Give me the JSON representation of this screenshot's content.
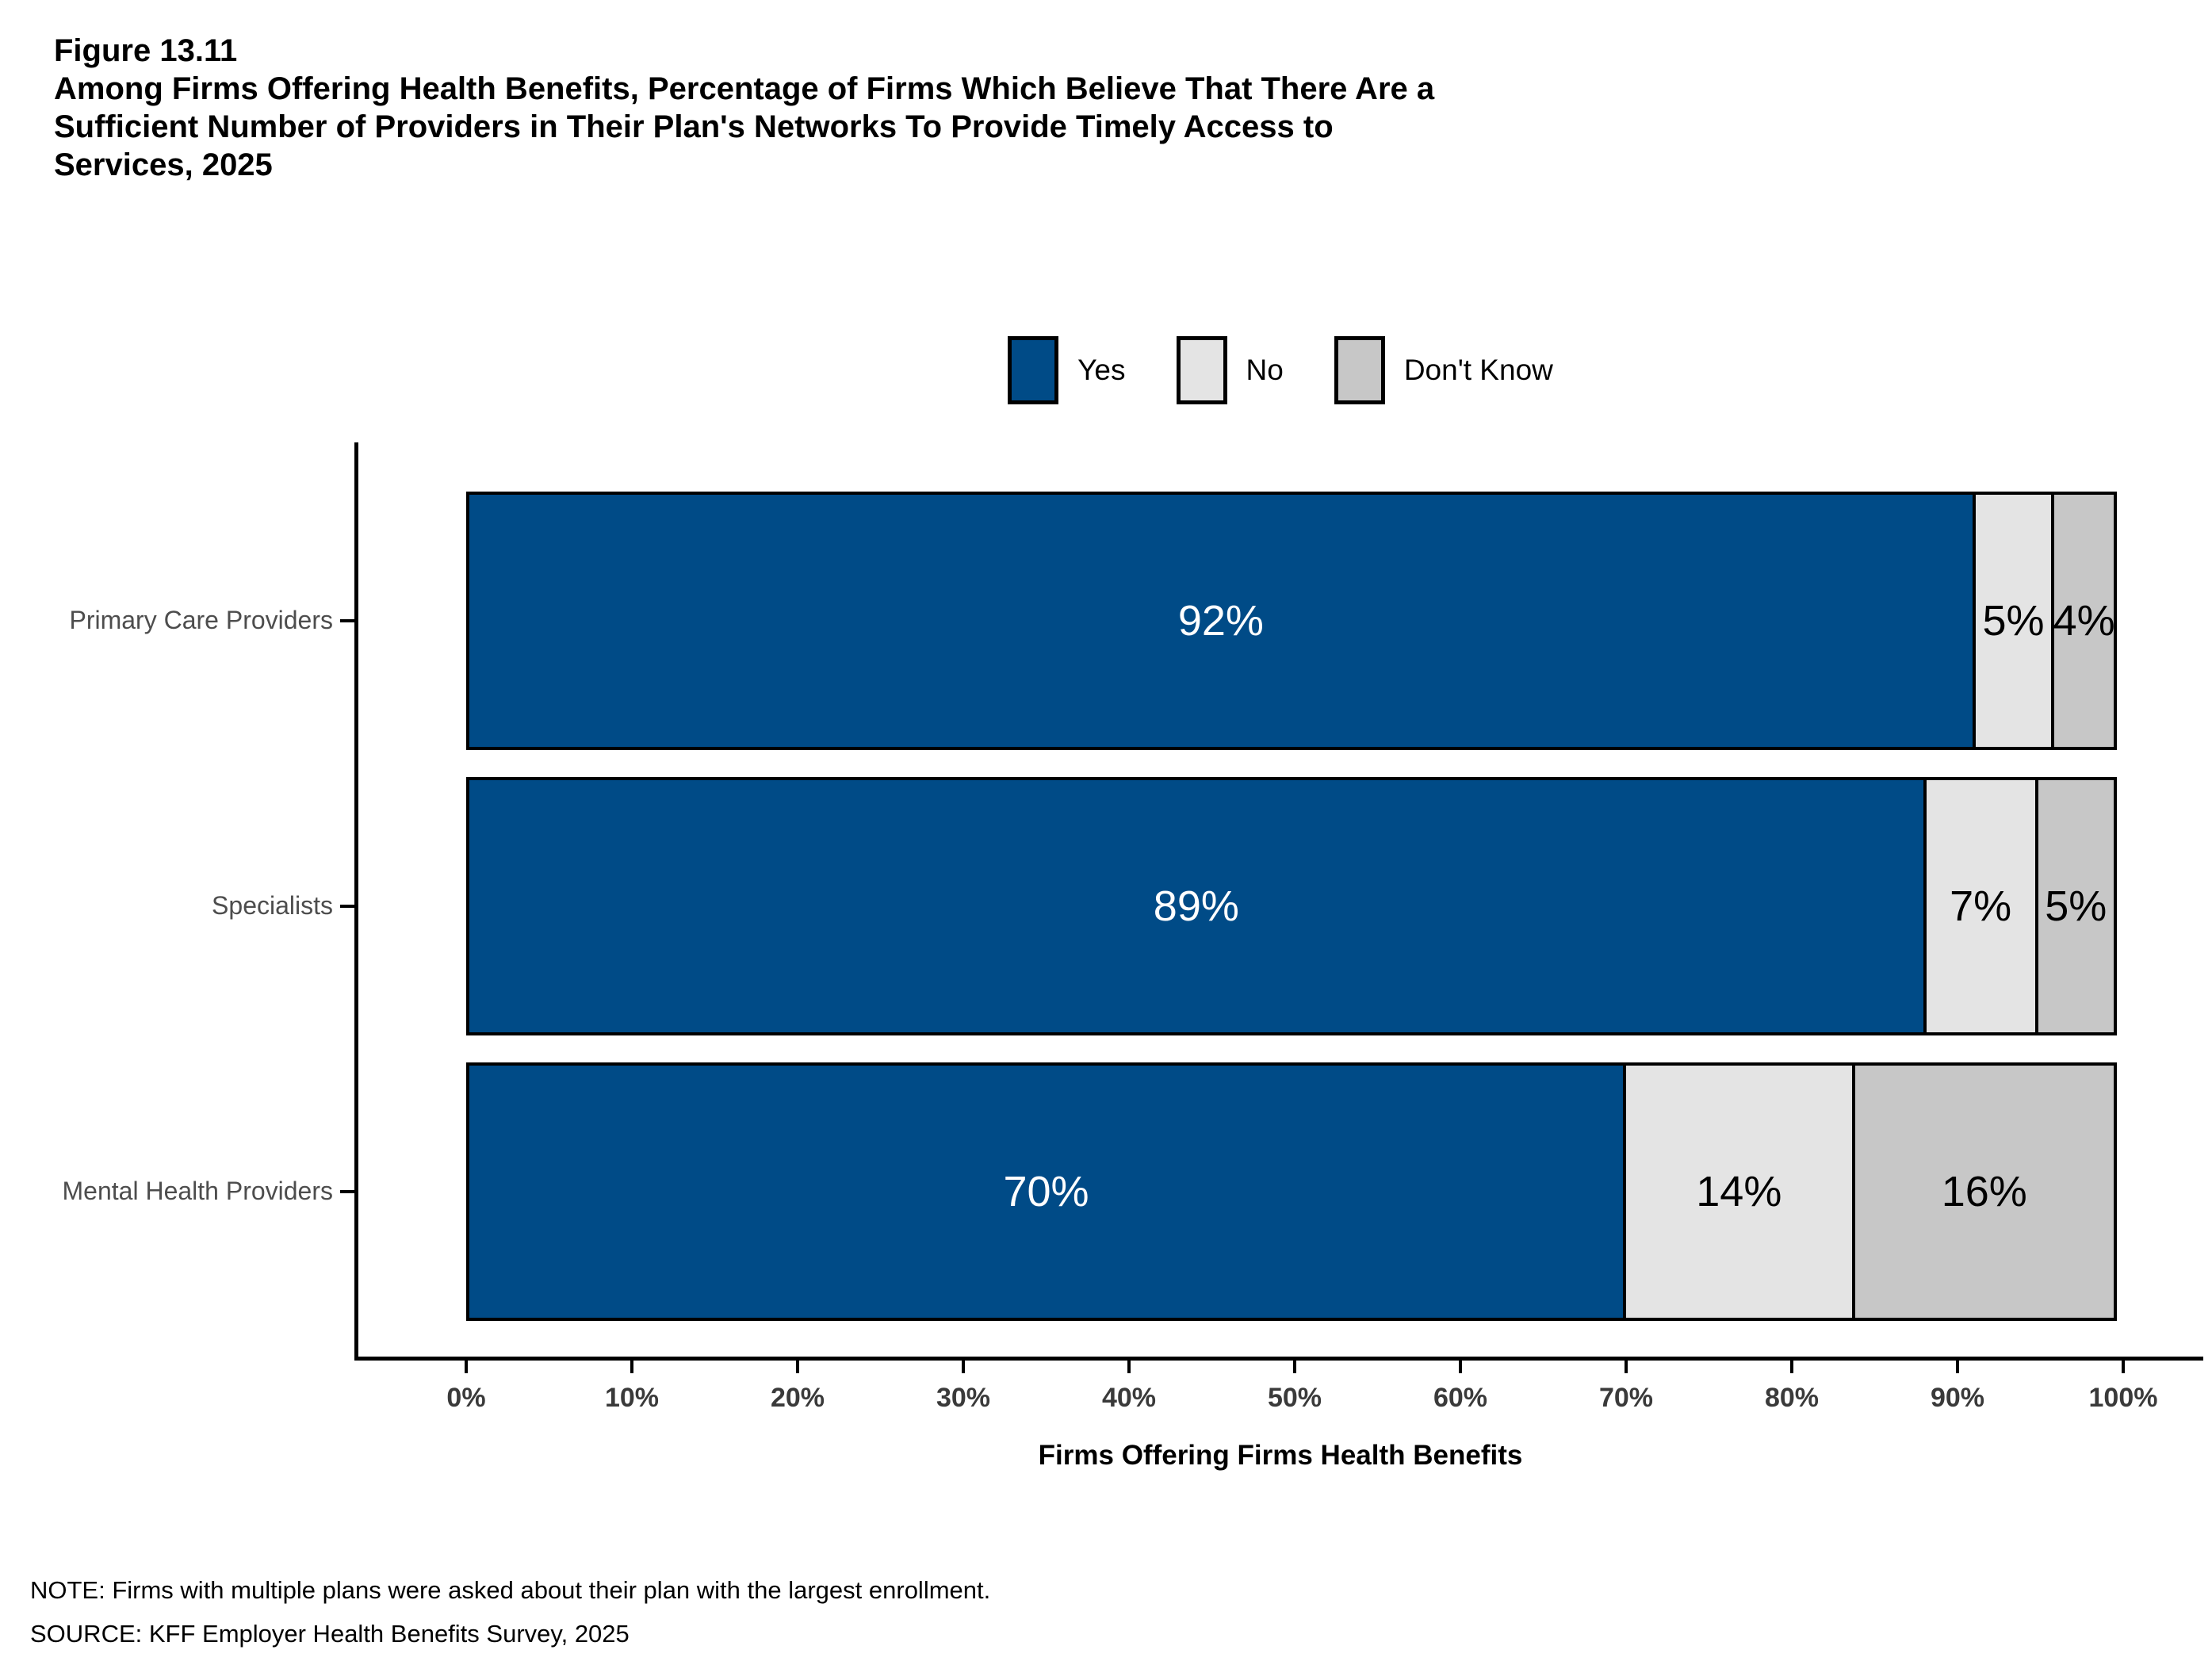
{
  "figure": {
    "label": "Figure 13.11",
    "title_lines": [
      "Among Firms Offering Health Benefits, Percentage of Firms Which Believe That There Are a",
      "Sufficient Number of Providers in Their Plan's Networks To Provide Timely Access to",
      "Services, 2025"
    ]
  },
  "chart_data": {
    "type": "bar",
    "orientation": "horizontal",
    "stacked": true,
    "categories": [
      "Primary Care Providers",
      "Specialists",
      "Mental Health Providers"
    ],
    "series": [
      {
        "name": "Yes",
        "color": "#004b87",
        "label_color": "#ffffff",
        "values": [
          92,
          89,
          70
        ]
      },
      {
        "name": "No",
        "color": "#e4e4e4",
        "label_color": "#000000",
        "values": [
          5,
          7,
          14
        ]
      },
      {
        "name": "Don't Know",
        "color": "#c7c7c7",
        "label_color": "#000000",
        "values": [
          4,
          5,
          16
        ]
      }
    ],
    "value_suffix": "%",
    "xlabel": "Firms Offering Firms Health Benefits",
    "x_ticks": [
      "0%",
      "10%",
      "20%",
      "30%",
      "40%",
      "50%",
      "60%",
      "70%",
      "80%",
      "90%",
      "100%"
    ],
    "xlim": [
      0,
      100
    ],
    "grid": false,
    "legend_position": "top-center"
  },
  "notes": {
    "note": "NOTE: Firms with multiple plans were asked about their plan with the largest enrollment.",
    "source": "SOURCE: KFF Employer Health Benefits Survey, 2025"
  },
  "colors": {
    "axis": "#000000",
    "category_label": "#4d4d4d",
    "tick_label": "#3a3a3a"
  }
}
